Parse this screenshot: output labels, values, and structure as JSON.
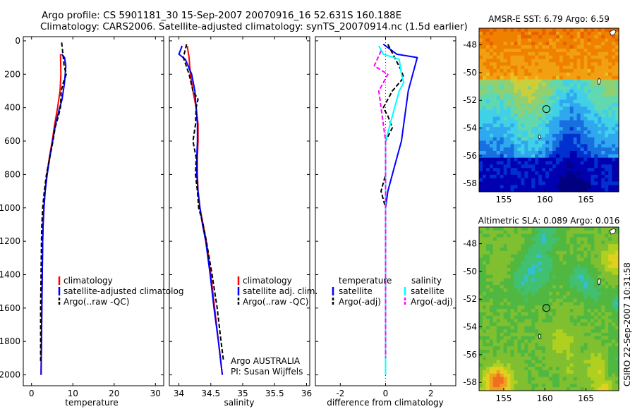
{
  "title": {
    "line1": "Argo profile: CS 5901181_30 15-Sep-2007 20070916_16 52.631S 160.188E",
    "line2": "Climatology: CARS2006. Satellite-adjusted climatology: synTS_20070914.nc (1.5d earlier)"
  },
  "colors": {
    "red": "#ff0000",
    "blue": "#0000ff",
    "black": "#000000",
    "cyan": "#00ffff",
    "magenta": "#ff00ff"
  },
  "chart_data": [
    {
      "type": "line",
      "id": "temp",
      "xlabel": "temperature",
      "xlim": [
        -2,
        32
      ],
      "ylim": [
        2000,
        0
      ],
      "xticks": [
        0,
        10,
        20,
        30
      ],
      "yticks": [
        0,
        200,
        400,
        600,
        800,
        1000,
        1200,
        1400,
        1600,
        1800,
        2000
      ],
      "legend": [
        "climatology",
        "satellite-adjusted climatolog",
        "Argo(..raw -QC)"
      ],
      "legend_placement": "lower-right",
      "series": [
        {
          "name": "climatology",
          "color": "red",
          "points": [
            [
              7.0,
              80
            ],
            [
              7.1,
              200
            ],
            [
              6.9,
              300
            ],
            [
              6.3,
              400
            ],
            [
              5.6,
              500
            ],
            [
              5.0,
              600
            ],
            [
              4.3,
              700
            ],
            [
              3.7,
              800
            ],
            [
              3.3,
              900
            ],
            [
              3.0,
              1000
            ],
            [
              2.8,
              1100
            ],
            [
              2.7,
              1200
            ],
            [
              2.6,
              1400
            ],
            [
              2.5,
              1600
            ],
            [
              2.4,
              1800
            ],
            [
              2.3,
              2000
            ]
          ]
        },
        {
          "name": "satellite-adjusted climatology",
          "color": "blue",
          "points": [
            [
              7.3,
              80
            ],
            [
              8.0,
              100
            ],
            [
              8.3,
              150
            ],
            [
              8.0,
              250
            ],
            [
              7.4,
              350
            ],
            [
              6.6,
              420
            ],
            [
              5.8,
              500
            ],
            [
              5.1,
              600
            ],
            [
              4.4,
              700
            ],
            [
              3.8,
              800
            ],
            [
              3.3,
              900
            ],
            [
              3.0,
              1000
            ],
            [
              2.8,
              1100
            ],
            [
              2.7,
              1200
            ],
            [
              2.6,
              1400
            ],
            [
              2.5,
              1600
            ],
            [
              2.4,
              1800
            ],
            [
              2.3,
              2000
            ]
          ]
        },
        {
          "name": "Argo(..raw -QC)",
          "color": "black",
          "dash": true,
          "points": [
            [
              7.3,
              10
            ],
            [
              7.6,
              80
            ],
            [
              7.9,
              150
            ],
            [
              8.4,
              200
            ],
            [
              7.7,
              250
            ],
            [
              7.2,
              300
            ],
            [
              7.0,
              400
            ],
            [
              6.5,
              450
            ],
            [
              5.7,
              520
            ],
            [
              5.2,
              600
            ],
            [
              4.4,
              700
            ],
            [
              3.6,
              800
            ],
            [
              3.1,
              900
            ],
            [
              2.7,
              1000
            ],
            [
              2.5,
              1100
            ],
            [
              2.4,
              1200
            ],
            [
              2.3,
              1400
            ],
            [
              2.2,
              1600
            ],
            [
              2.2,
              1800
            ],
            [
              2.2,
              1920
            ]
          ]
        }
      ]
    },
    {
      "type": "line",
      "id": "sal",
      "xlabel": "salinity",
      "xlim": [
        33.85,
        36.05
      ],
      "ylim": [
        2000,
        0
      ],
      "xticks": [
        34,
        34.5,
        35,
        35.5,
        36
      ],
      "xticklabels": [
        "34",
        "34.5",
        "35",
        "35.5",
        "36"
      ],
      "legend": [
        "climatology",
        "satellite adj. clim.",
        "Argo(..raw -QC)"
      ],
      "legend_placement": "lower-right",
      "annotation": [
        "Argo AUSTRALIA",
        "PI: Susan Wijffels"
      ],
      "series": [
        {
          "name": "climatology",
          "color": "red",
          "points": [
            [
              34.13,
              30
            ],
            [
              34.16,
              100
            ],
            [
              34.18,
              200
            ],
            [
              34.22,
              300
            ],
            [
              34.27,
              400
            ],
            [
              34.3,
              500
            ],
            [
              34.3,
              600
            ],
            [
              34.29,
              700
            ],
            [
              34.29,
              800
            ],
            [
              34.3,
              900
            ],
            [
              34.33,
              1000
            ],
            [
              34.38,
              1100
            ],
            [
              34.43,
              1200
            ],
            [
              34.5,
              1400
            ],
            [
              34.56,
              1600
            ],
            [
              34.62,
              1800
            ],
            [
              34.68,
              2000
            ]
          ]
        },
        {
          "name": "satellite adj. clim.",
          "color": "blue",
          "points": [
            [
              34.05,
              30
            ],
            [
              34.0,
              80
            ],
            [
              34.1,
              110
            ],
            [
              34.2,
              200
            ],
            [
              34.25,
              300
            ],
            [
              34.27,
              400
            ],
            [
              34.29,
              500
            ],
            [
              34.29,
              600
            ],
            [
              34.28,
              700
            ],
            [
              34.28,
              800
            ],
            [
              34.3,
              900
            ],
            [
              34.33,
              1000
            ],
            [
              34.37,
              1100
            ],
            [
              34.42,
              1200
            ],
            [
              34.49,
              1400
            ],
            [
              34.55,
              1600
            ],
            [
              34.62,
              1800
            ],
            [
              34.68,
              2000
            ]
          ]
        },
        {
          "name": "Argo(..raw -QC)",
          "color": "black",
          "dash": true,
          "points": [
            [
              34.12,
              20
            ],
            [
              34.07,
              100
            ],
            [
              34.16,
              200
            ],
            [
              34.22,
              300
            ],
            [
              34.3,
              350
            ],
            [
              34.27,
              400
            ],
            [
              34.26,
              500
            ],
            [
              34.22,
              600
            ],
            [
              34.27,
              700
            ],
            [
              34.26,
              800
            ],
            [
              34.29,
              900
            ],
            [
              34.31,
              1000
            ],
            [
              34.38,
              1100
            ],
            [
              34.43,
              1200
            ],
            [
              34.52,
              1400
            ],
            [
              34.6,
              1600
            ],
            [
              34.66,
              1800
            ],
            [
              34.7,
              1920
            ]
          ]
        }
      ]
    },
    {
      "type": "line",
      "id": "diff",
      "xlabel": "difference from climatology",
      "xlim": [
        -3.1,
        3.1
      ],
      "ylim": [
        2000,
        0
      ],
      "xticks": [
        -2,
        0,
        2
      ],
      "legend_left_header": "temperature",
      "legend_right_header": "salinity",
      "legend_left": [
        "satellite",
        "Argo(-adj)"
      ],
      "legend_right": [
        "satellite",
        "Argo(-adj)"
      ],
      "legend_placement": "lower",
      "series": [
        {
          "name": "temperature satellite",
          "color": "blue",
          "points": [
            [
              -0.1,
              20
            ],
            [
              0.5,
              80
            ],
            [
              1.4,
              100
            ],
            [
              1.2,
              200
            ],
            [
              1.0,
              300
            ],
            [
              0.9,
              400
            ],
            [
              0.8,
              500
            ],
            [
              0.7,
              600
            ],
            [
              0.5,
              700
            ],
            [
              0.3,
              800
            ],
            [
              0.1,
              900
            ],
            [
              0.0,
              1000
            ],
            [
              0.0,
              1500
            ],
            [
              0.0,
              2000
            ]
          ]
        },
        {
          "name": "temperature Argo(-adj)",
          "color": "black",
          "dash": true,
          "points": [
            [
              0.1,
              20
            ],
            [
              0.7,
              180
            ],
            [
              0.8,
              220
            ],
            [
              0.3,
              300
            ],
            [
              -0.1,
              400
            ],
            [
              0.1,
              450
            ],
            [
              0.3,
              520
            ],
            [
              0.0,
              600
            ],
            [
              0.0,
              700
            ],
            [
              0.0,
              800
            ],
            [
              -0.2,
              900
            ],
            [
              0.0,
              1000
            ],
            [
              0.0,
              1500
            ],
            [
              0.0,
              1800
            ],
            [
              0.0,
              1920
            ]
          ]
        },
        {
          "name": "salinity satellite",
          "color": "cyan",
          "points": [
            [
              -0.3,
              30
            ],
            [
              -0.1,
              80
            ],
            [
              0.6,
              110
            ],
            [
              0.7,
              200
            ],
            [
              0.8,
              250
            ],
            [
              0.6,
              300
            ],
            [
              0.4,
              400
            ],
            [
              0.2,
              500
            ],
            [
              0.0,
              600
            ],
            [
              0.0,
              1000
            ],
            [
              0.0,
              2000
            ]
          ]
        },
        {
          "name": "salinity Argo(-adj)",
          "color": "magenta",
          "dash": true,
          "points": [
            [
              -0.2,
              60
            ],
            [
              -0.5,
              150
            ],
            [
              0.1,
              200
            ],
            [
              -0.3,
              300
            ],
            [
              -0.2,
              400
            ],
            [
              -0.1,
              500
            ],
            [
              0.0,
              600
            ],
            [
              0.0,
              1000
            ],
            [
              0.0,
              1900
            ]
          ]
        }
      ]
    },
    {
      "type": "heatmap",
      "id": "sst",
      "title": "AMSR-E SST: 6.79 Argo: 6.59",
      "xlim": [
        152,
        169
      ],
      "ylim": [
        -58.6,
        -46.8
      ],
      "xticks": [
        155,
        160,
        165
      ],
      "yticks": [
        -48,
        -50,
        -52,
        -54,
        -56,
        -58
      ],
      "marker": {
        "lon": 160.188,
        "lat": -52.631
      }
    },
    {
      "type": "heatmap",
      "id": "sla",
      "title": "Altimetric SLA: 0.089 Argo: 0.016",
      "xlim": [
        152,
        169
      ],
      "ylim": [
        -58.6,
        -46.8
      ],
      "xticks": [
        155,
        160,
        165
      ],
      "yticks": [
        -48,
        -50,
        -52,
        -54,
        -56,
        -58
      ],
      "marker": {
        "lon": 160.188,
        "lat": -52.631
      }
    }
  ],
  "footer_stamp": "CSIRO 22-Sep-2007 10:31:58"
}
